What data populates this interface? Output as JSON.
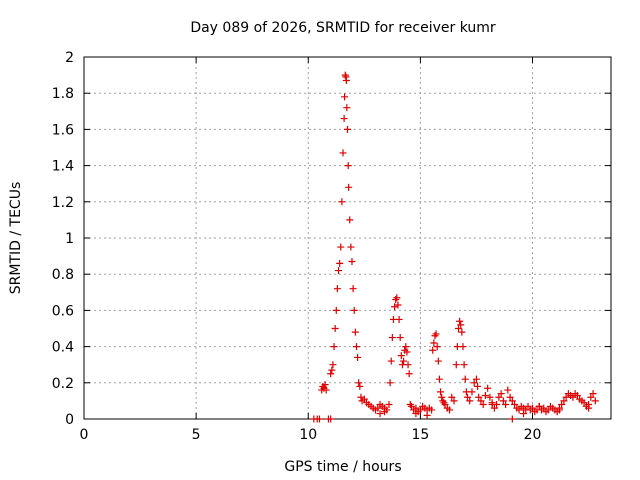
{
  "chart_data": {
    "type": "scatter",
    "title": "Day 089 of 2026, SRMTID for receiver kumr",
    "xlabel": "GPS time / hours",
    "ylabel": "SRMTID / TECUs",
    "xlim": [
      0,
      23.5
    ],
    "ylim": [
      0,
      2
    ],
    "xticks": [
      0,
      5,
      10,
      15,
      20
    ],
    "yticks": [
      0,
      0.2,
      0.4,
      0.6,
      0.8,
      1,
      1.2,
      1.4,
      1.6,
      1.8,
      2
    ],
    "xtick_labels": [
      "0",
      "5",
      "10",
      "15",
      "20"
    ],
    "ytick_labels": [
      "0",
      "0.2",
      "0.4",
      "0.6",
      "0.8",
      "1",
      "1.2",
      "1.4",
      "1.6",
      "1.8",
      "2"
    ],
    "grid": true,
    "marker": "+",
    "color": "#e00000",
    "series": [
      {
        "name": "SRMTID",
        "x": [
          10.25,
          10.5,
          10.9,
          11.0,
          10.6,
          10.65,
          10.7,
          10.75,
          10.8,
          11.0,
          11.05,
          11.1,
          11.15,
          11.2,
          11.25,
          11.3,
          11.35,
          11.4,
          11.45,
          11.5,
          11.55,
          11.6,
          11.62,
          11.65,
          11.68,
          11.7,
          11.72,
          11.75,
          11.78,
          11.8,
          11.85,
          11.9,
          11.95,
          12.0,
          12.05,
          12.1,
          12.15,
          12.2,
          12.25,
          12.3,
          12.35,
          12.4,
          12.5,
          12.6,
          12.7,
          12.8,
          12.9,
          13.0,
          13.1,
          13.2,
          13.3,
          13.4,
          13.5,
          13.6,
          13.65,
          13.7,
          13.75,
          13.8,
          13.85,
          13.9,
          13.95,
          14.0,
          14.05,
          14.1,
          14.15,
          14.2,
          14.25,
          14.3,
          14.35,
          14.4,
          14.45,
          14.5,
          14.55,
          14.6,
          14.7,
          14.8,
          14.9,
          15.0,
          15.1,
          15.2,
          15.3,
          15.4,
          15.5,
          15.55,
          15.6,
          15.65,
          15.7,
          15.75,
          15.8,
          15.85,
          15.9,
          15.95,
          16.0,
          16.05,
          16.1,
          16.2,
          16.3,
          16.4,
          16.5,
          16.6,
          16.65,
          16.7,
          16.75,
          16.8,
          16.85,
          16.9,
          16.95,
          17.0,
          17.05,
          17.1,
          17.2,
          17.3,
          17.4,
          17.5,
          17.55,
          17.6,
          17.7,
          17.8,
          17.9,
          18.0,
          18.1,
          18.2,
          18.3,
          18.4,
          18.5,
          18.6,
          18.7,
          18.8,
          18.9,
          19.0,
          19.1,
          19.2,
          19.3,
          19.4,
          19.5,
          19.6,
          19.7,
          19.8,
          19.9,
          20.0,
          20.1,
          20.2,
          20.3,
          20.4,
          20.5,
          20.6,
          20.7,
          20.8,
          20.9,
          21.0,
          21.1,
          21.2,
          21.3,
          21.4,
          21.5,
          21.6,
          21.7,
          21.8,
          21.9,
          22.0,
          22.1,
          22.2,
          22.3,
          22.4,
          22.5,
          22.6,
          22.7,
          22.8,
          19.1,
          10.4,
          13.2,
          13.4,
          14.8,
          15.3,
          18.2,
          19.6,
          20.3,
          21.2,
          22.5
        ],
        "y": [
          0.0,
          0.0,
          0.0,
          0.0,
          0.16,
          0.18,
          0.17,
          0.19,
          0.16,
          0.25,
          0.27,
          0.3,
          0.4,
          0.5,
          0.6,
          0.72,
          0.82,
          0.86,
          0.95,
          1.2,
          1.47,
          1.66,
          1.78,
          1.9,
          1.89,
          1.87,
          1.72,
          1.6,
          1.4,
          1.28,
          1.1,
          0.95,
          0.87,
          0.72,
          0.6,
          0.48,
          0.4,
          0.34,
          0.2,
          0.18,
          0.12,
          0.1,
          0.11,
          0.09,
          0.08,
          0.07,
          0.06,
          0.05,
          0.06,
          0.08,
          0.07,
          0.06,
          0.05,
          0.08,
          0.2,
          0.32,
          0.45,
          0.55,
          0.62,
          0.66,
          0.67,
          0.63,
          0.55,
          0.45,
          0.35,
          0.3,
          0.32,
          0.38,
          0.4,
          0.37,
          0.3,
          0.25,
          0.08,
          0.07,
          0.05,
          0.06,
          0.04,
          0.05,
          0.07,
          0.06,
          0.05,
          0.06,
          0.05,
          0.38,
          0.42,
          0.46,
          0.47,
          0.4,
          0.32,
          0.22,
          0.15,
          0.12,
          0.1,
          0.09,
          0.08,
          0.06,
          0.05,
          0.12,
          0.1,
          0.3,
          0.4,
          0.5,
          0.54,
          0.52,
          0.48,
          0.4,
          0.3,
          0.22,
          0.15,
          0.12,
          0.1,
          0.15,
          0.2,
          0.22,
          0.18,
          0.12,
          0.1,
          0.08,
          0.13,
          0.17,
          0.12,
          0.09,
          0.06,
          0.08,
          0.12,
          0.14,
          0.1,
          0.08,
          0.16,
          0.12,
          0.1,
          0.08,
          0.06,
          0.05,
          0.07,
          0.06,
          0.05,
          0.07,
          0.05,
          0.06,
          0.04,
          0.05,
          0.07,
          0.05,
          0.06,
          0.04,
          0.05,
          0.07,
          0.06,
          0.05,
          0.04,
          0.06,
          0.08,
          0.1,
          0.12,
          0.14,
          0.13,
          0.12,
          0.14,
          0.13,
          0.11,
          0.1,
          0.09,
          0.07,
          0.08,
          0.12,
          0.14,
          0.1,
          0.0,
          0.0,
          0.03,
          0.04,
          0.03,
          0.02,
          0.08,
          0.03,
          0.07,
          0.05,
          0.06
        ]
      }
    ]
  }
}
